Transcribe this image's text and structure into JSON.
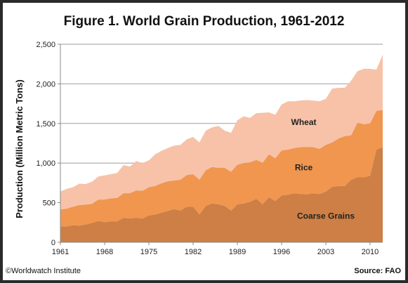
{
  "chart_data": {
    "type": "area",
    "stacked": true,
    "title": "Figure 1. World Grain Production,  1961-2012",
    "ylabel": "Production  (Million Metric Tons)",
    "xlabel": "",
    "ylim": [
      0,
      2500
    ],
    "xlim": [
      1961,
      2012
    ],
    "yticks": [
      0,
      500,
      1000,
      1500,
      2000,
      2500
    ],
    "ytick_labels": [
      "0",
      "500",
      "1,000",
      "1,500",
      "2,000",
      "2,500"
    ],
    "xticks": [
      1961,
      1968,
      1975,
      1982,
      1989,
      1996,
      2003,
      2010
    ],
    "xtick_labels": [
      "1961",
      "1968",
      "1975",
      "1982",
      "1989",
      "1996",
      "2003",
      "2010"
    ],
    "grid": "horizontal",
    "legend": "inline-labels",
    "x": [
      1961,
      1962,
      1963,
      1964,
      1965,
      1966,
      1967,
      1968,
      1969,
      1970,
      1971,
      1972,
      1973,
      1974,
      1975,
      1976,
      1977,
      1978,
      1979,
      1980,
      1981,
      1982,
      1983,
      1984,
      1985,
      1986,
      1987,
      1988,
      1989,
      1990,
      1991,
      1992,
      1993,
      1994,
      1995,
      1996,
      1997,
      1998,
      1999,
      2000,
      2001,
      2002,
      2003,
      2004,
      2005,
      2006,
      2007,
      2008,
      2009,
      2010,
      2011,
      2012
    ],
    "series": [
      {
        "name": "Coarse Grains",
        "color": "#cd7f45",
        "values": [
          200,
          200,
          215,
          210,
          225,
          245,
          270,
          255,
          265,
          265,
          310,
          300,
          310,
          300,
          340,
          350,
          375,
          395,
          420,
          400,
          450,
          450,
          350,
          460,
          490,
          480,
          460,
          400,
          480,
          490,
          510,
          550,
          480,
          570,
          520,
          590,
          600,
          620,
          610,
          605,
          620,
          610,
          640,
          700,
          710,
          710,
          790,
          820,
          820,
          840,
          1170,
          1200
        ]
      },
      {
        "name": "Rice",
        "color": "#f0964f",
        "values": [
          215,
          225,
          235,
          260,
          250,
          240,
          270,
          285,
          290,
          295,
          310,
          320,
          345,
          350,
          355,
          360,
          370,
          375,
          360,
          390,
          400,
          410,
          440,
          450,
          460,
          460,
          480,
          490,
          500,
          510,
          500,
          490,
          525,
          540,
          540,
          570,
          570,
          570,
          590,
          600,
          580,
          570,
          590,
          560,
          600,
          630,
          560,
          690,
          670,
          660,
          490,
          470
        ]
      },
      {
        "name": "Wheat",
        "color": "#f7c2a8",
        "values": [
          225,
          250,
          245,
          270,
          260,
          280,
          290,
          305,
          305,
          315,
          355,
          335,
          370,
          350,
          340,
          400,
          410,
          420,
          440,
          440,
          450,
          470,
          470,
          500,
          500,
          530,
          470,
          490,
          560,
          590,
          560,
          590,
          630,
          530,
          550,
          580,
          610,
          590,
          590,
          590,
          590,
          600,
          580,
          680,
          640,
          610,
          690,
          650,
          700,
          690,
          520,
          700
        ]
      }
    ],
    "labels": {
      "wheat": "Wheat",
      "rice": "Rice",
      "coarse": "Coarse Grains"
    },
    "axis_color": "#888888",
    "grid_color": "#9e9e9e"
  },
  "footer": {
    "credit": "©Worldwatch Institute",
    "source": "Source: FAO"
  }
}
